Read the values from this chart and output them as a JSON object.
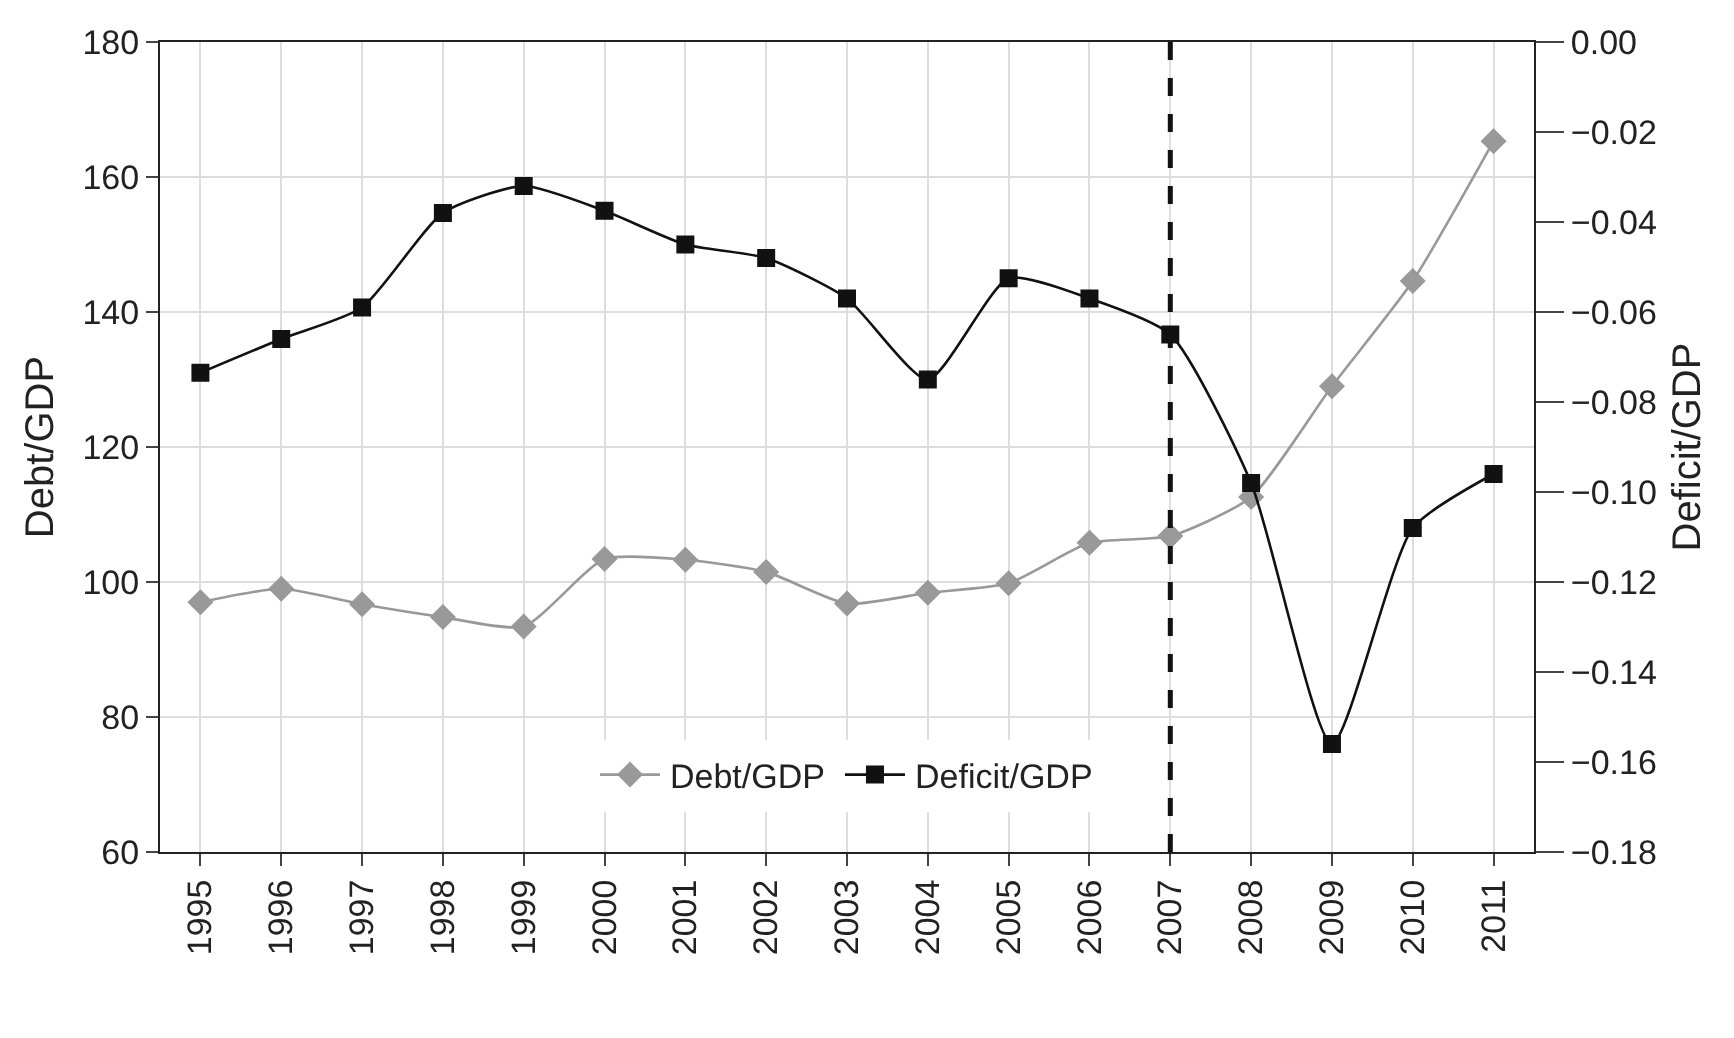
{
  "chart_data": {
    "type": "line",
    "xlabel": null,
    "ylabel": "Debt/GDP",
    "y2label": "Deficit/GDP",
    "categories": [
      "1995",
      "1996",
      "1997",
      "1998",
      "1999",
      "2000",
      "2001",
      "2002",
      "2003",
      "2004",
      "2005",
      "2006",
      "2007",
      "2008",
      "2009",
      "2010",
      "2011"
    ],
    "series": [
      {
        "name": "Debt/GDP",
        "color": "#999999",
        "marker": "diamond",
        "values": [
          97,
          99,
          96.7,
          94.8,
          93.4,
          103.4,
          103.3,
          101.5,
          96.8,
          98.4,
          99.8,
          105.8,
          106.8,
          112.6,
          129,
          144.6,
          165.3
        ]
      },
      {
        "name": "Deficit/GDP",
        "color": "#111111",
        "marker": "square",
        "axis": "y2",
        "values": [
          -0.0735,
          -0.066,
          -0.059,
          -0.038,
          -0.032,
          -0.0375,
          -0.045,
          -0.048,
          -0.057,
          -0.075,
          -0.0525,
          -0.057,
          -0.065,
          -0.098,
          -0.156,
          -0.108,
          -0.096
        ]
      }
    ],
    "ylim": [
      60,
      180
    ],
    "yticks": [
      60,
      80,
      100,
      120,
      140,
      160,
      180
    ],
    "y2lim": [
      -0.18,
      0
    ],
    "y2ticks": [
      {
        "value": -0.18,
        "label": "−0.18"
      },
      {
        "value": -0.16,
        "label": "−0.16"
      },
      {
        "value": -0.14,
        "label": "−0.14"
      },
      {
        "value": -0.12,
        "label": "−0.12"
      },
      {
        "value": -0.1,
        "label": "−0.10"
      },
      {
        "value": -0.08,
        "label": "−0.08"
      },
      {
        "value": -0.06,
        "label": "−0.06"
      },
      {
        "value": -0.04,
        "label": "−0.04"
      },
      {
        "value": -0.02,
        "label": "−0.02"
      },
      {
        "value": 0,
        "label": "0.00"
      }
    ],
    "ref_lines": [
      {
        "axis": "x",
        "value": "2007",
        "color": "#111111",
        "line_style": "dashed"
      }
    ],
    "grid": true,
    "legend": "bottom",
    "line_style": "solid"
  }
}
